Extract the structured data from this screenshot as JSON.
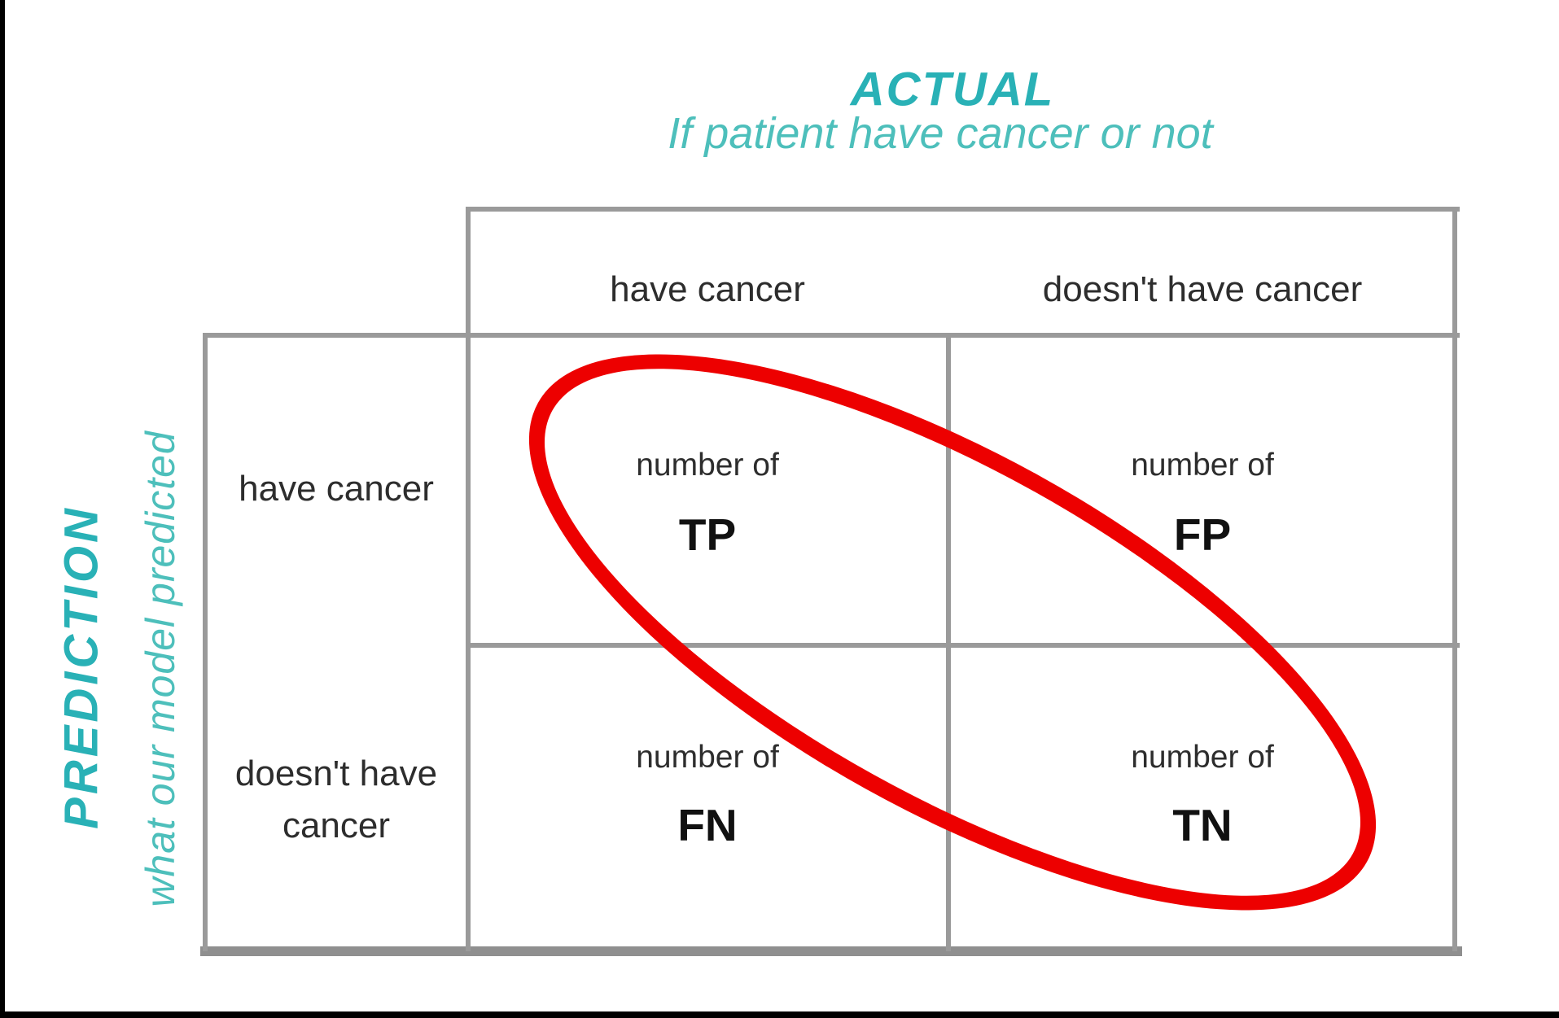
{
  "diagram": {
    "top_axis": {
      "title": "ACTUAL",
      "subtitle": "If patient have cancer or not"
    },
    "left_axis": {
      "title": "PREDICTION",
      "subtitle": "what our model predicted"
    },
    "column_headers": [
      "have cancer",
      "doesn't have cancer"
    ],
    "row_labels": [
      "have cancer",
      "doesn't have cancer"
    ],
    "cells": [
      {
        "prefix": "number of",
        "code": "TP"
      },
      {
        "prefix": "number of",
        "code": "FP"
      },
      {
        "prefix": "number of",
        "code": "FN"
      },
      {
        "prefix": "number of",
        "code": "TN"
      }
    ],
    "colors": {
      "teal_bold": "#29b1b6",
      "teal_light": "#4dbfbb",
      "grid": "#9a9a9a",
      "highlight_red": "#ed0000",
      "text": "#2d2d2d"
    }
  }
}
